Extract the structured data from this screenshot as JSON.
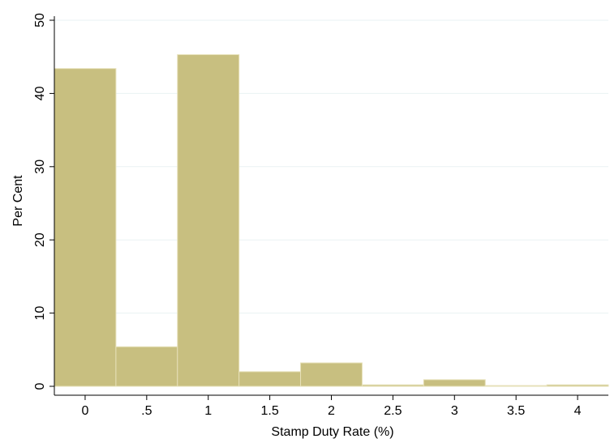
{
  "chart_data": {
    "type": "bar",
    "subtype": "histogram",
    "title": "",
    "xlabel": "Stamp Duty Rate (%)",
    "ylabel": "Per Cent",
    "xlim": [
      -0.25,
      4.25
    ],
    "ylim": [
      0,
      50
    ],
    "xticks": [
      0,
      0.5,
      1,
      1.5,
      2,
      2.5,
      3,
      3.5,
      4
    ],
    "xtick_labels": [
      "0",
      ".5",
      "1",
      "1.5",
      "2",
      "2.5",
      "3",
      "3.5",
      "4"
    ],
    "yticks": [
      0,
      10,
      20,
      30,
      40,
      50
    ],
    "ytick_labels": [
      "0",
      "10",
      "20",
      "30",
      "40",
      "50"
    ],
    "bin_width": 0.5,
    "bins": [
      {
        "label": "0",
        "x": 0,
        "value": 43.4
      },
      {
        "label": ".5",
        "x": 0.5,
        "value": 5.4
      },
      {
        "label": "1",
        "x": 1,
        "value": 45.3
      },
      {
        "label": "1.5",
        "x": 1.5,
        "value": 2.0
      },
      {
        "label": "2",
        "x": 2,
        "value": 3.2
      },
      {
        "label": "2.5",
        "x": 2.5,
        "value": 0.2
      },
      {
        "label": "3",
        "x": 3,
        "value": 0.9
      },
      {
        "label": "3.5",
        "x": 3.5,
        "value": 0.1
      },
      {
        "label": "4",
        "x": 4,
        "value": 0.2
      }
    ],
    "grid": "horizontal",
    "legend": "none",
    "colors": {
      "bar_fill": "#c8bf80",
      "bar_stroke": "#e6e0b8",
      "grid": "#eaf2f3",
      "axis": "#000000"
    }
  }
}
